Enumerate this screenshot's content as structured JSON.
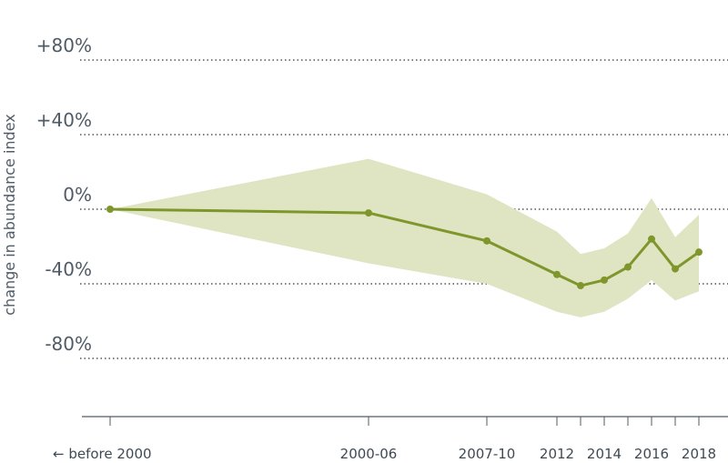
{
  "chart_data": {
    "type": "line",
    "ylabel": "change in abundance index",
    "ylim": [
      -110,
      90
    ],
    "y_ticks": [
      80,
      40,
      0,
      -40,
      -80
    ],
    "y_tick_labels": [
      "+80%",
      "+40%",
      "0%",
      "-40%",
      "-80%"
    ],
    "x_tick_labels": [
      "← before 2000",
      "2000-06",
      "2007-10",
      "2012",
      "2014",
      "2016",
      "2018"
    ],
    "series": [
      {
        "x": [
          "before 2000",
          "2000-06",
          "2007-10",
          "2012",
          "2013",
          "2014",
          "2015",
          "2016",
          "2017",
          "2018"
        ],
        "values": [
          0,
          -2,
          -17,
          -35,
          -41,
          -38,
          -31,
          -16,
          -32,
          -23
        ],
        "lower": [
          0,
          -29,
          -40,
          -55,
          -58,
          -55,
          -48,
          -38,
          -49,
          -44
        ],
        "upper": [
          0,
          27,
          8,
          -12,
          -24,
          -21,
          -13,
          6,
          -15,
          -3
        ]
      }
    ],
    "grid": true,
    "legend": "none",
    "colors": {
      "line": "#7f962c",
      "band": "#dfe5c2",
      "text": "#4f5b66"
    }
  }
}
